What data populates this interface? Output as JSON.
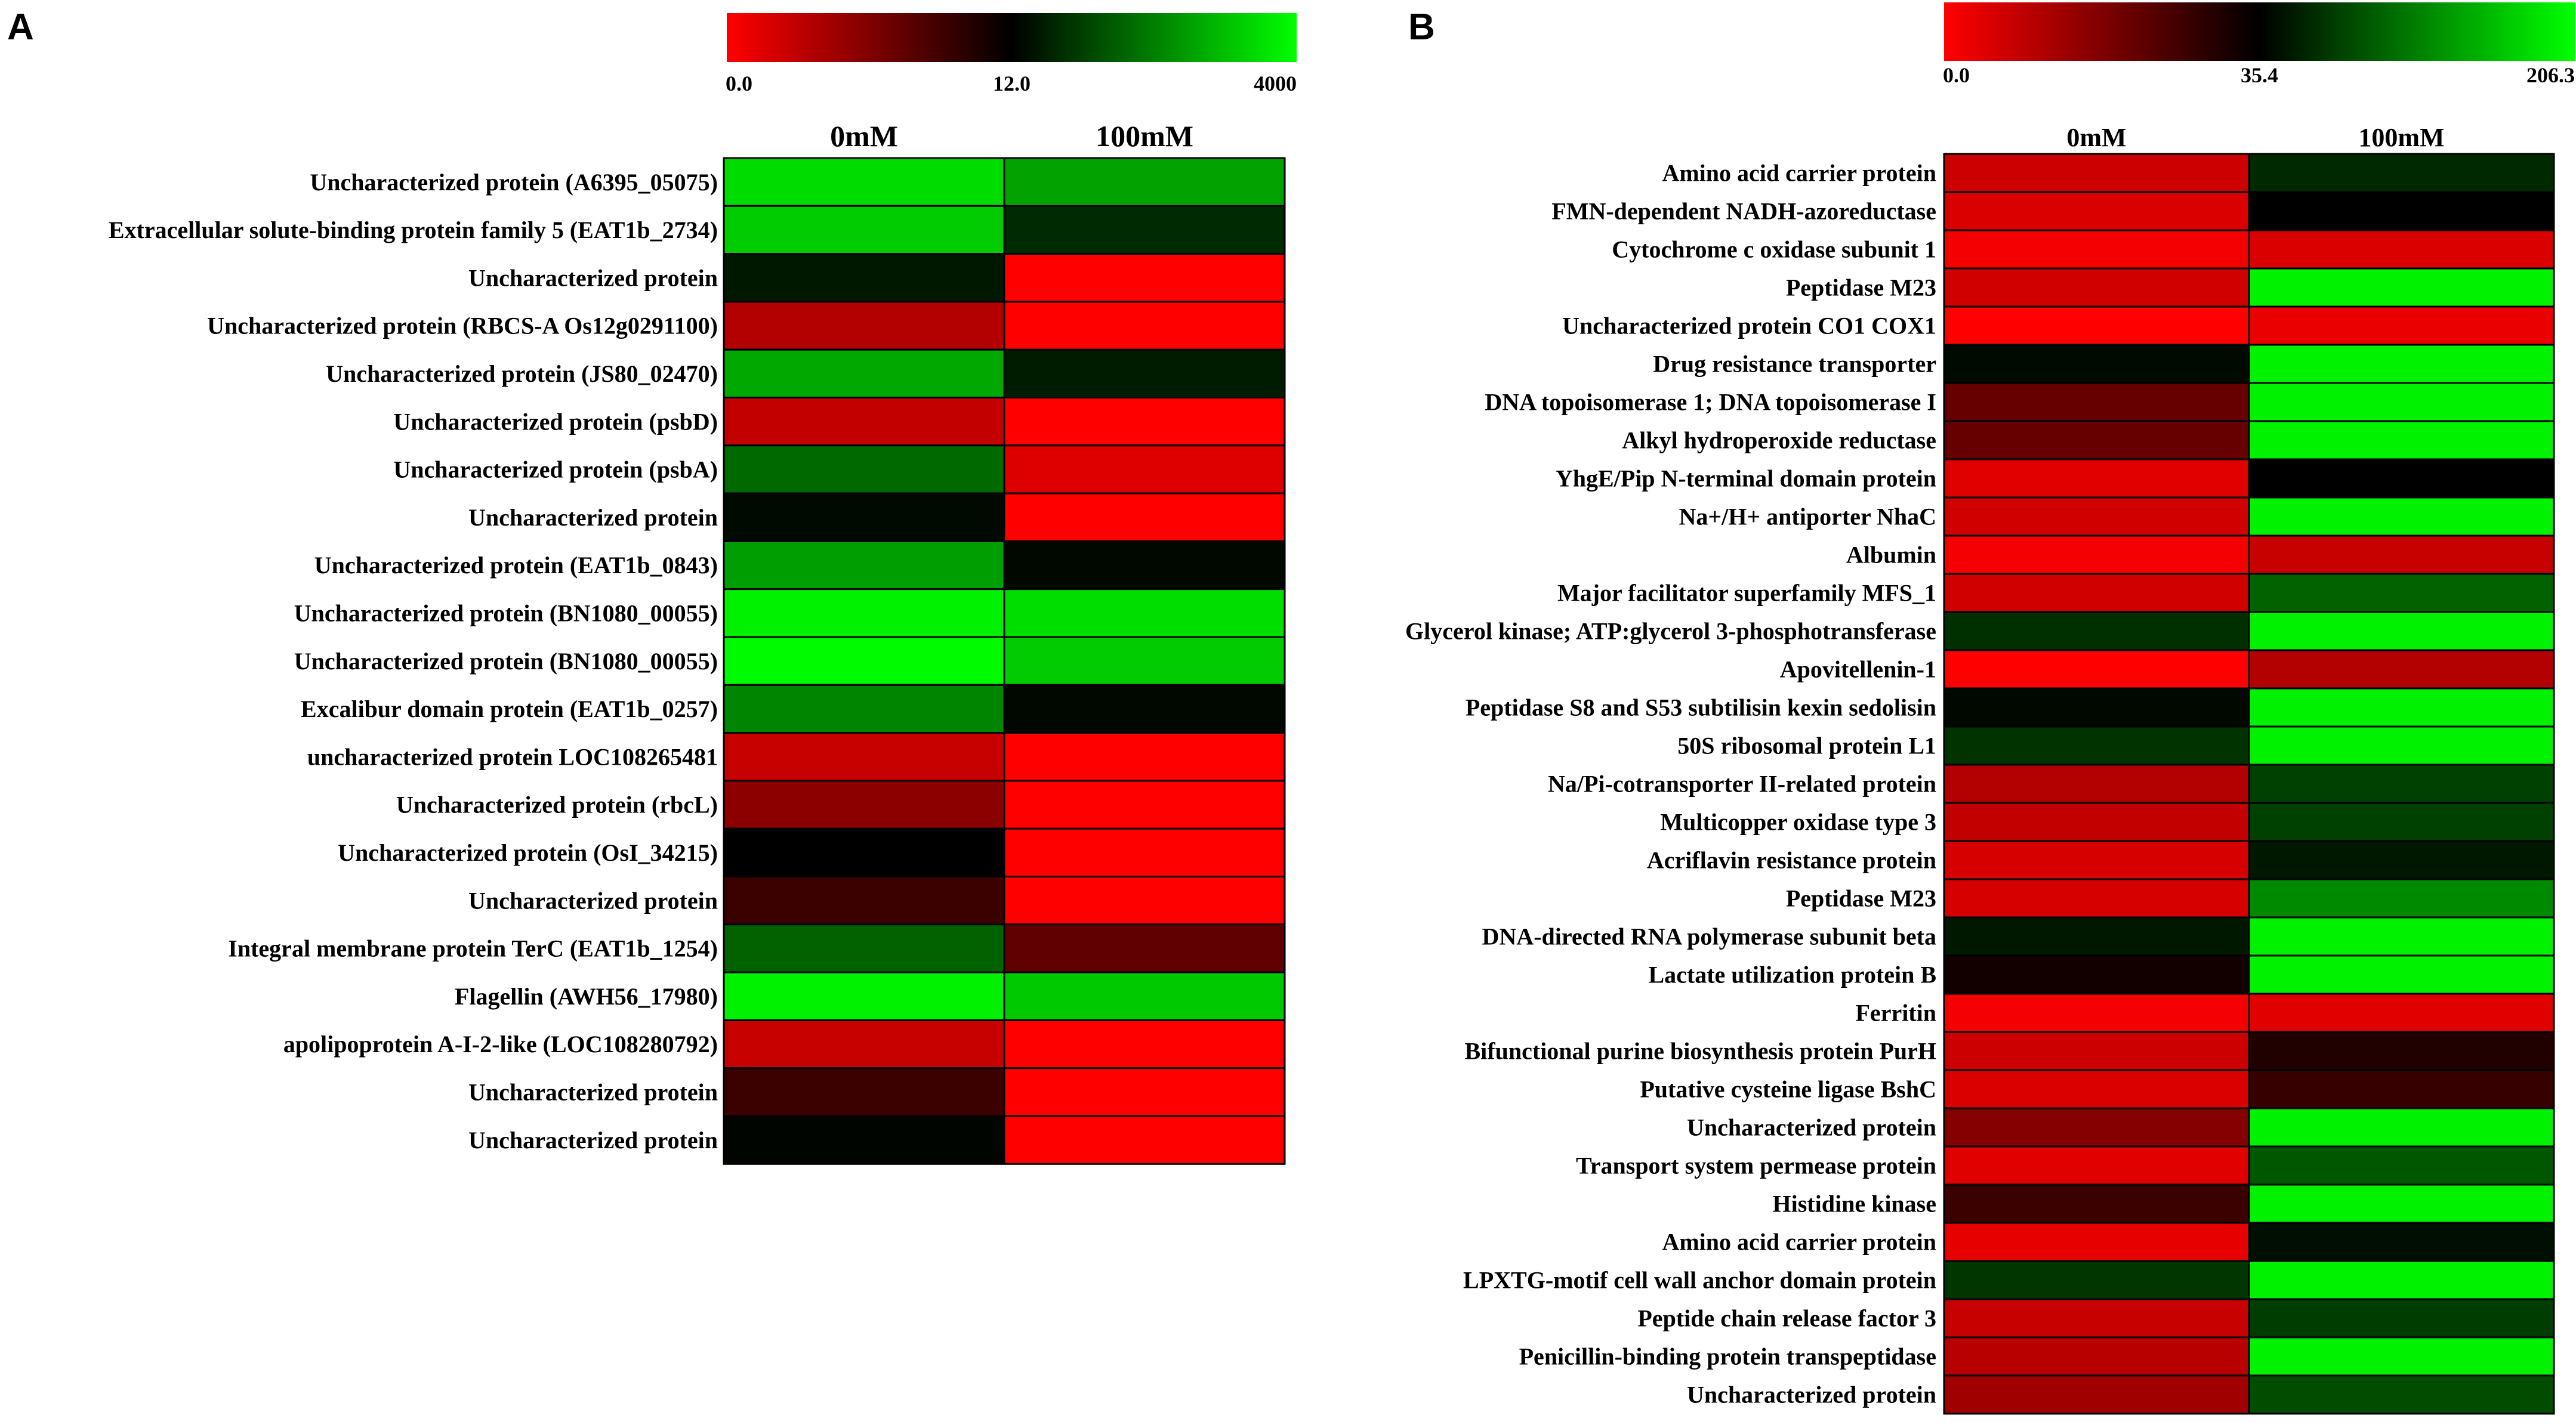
{
  "figure": {
    "panel_a_label": "A",
    "panel_b_label": "B"
  },
  "colors": {
    "low": "#ff0000",
    "mid": "#000000",
    "high": "#00ff00",
    "border": "#000000"
  },
  "chart_data": [
    {
      "type": "heatmap",
      "panel": "A",
      "columns": [
        "0mM",
        "100mM"
      ],
      "colorbar": {
        "tick_labels": [
          "0.0",
          "12.0",
          "4000"
        ],
        "min": 0.0,
        "mid": 12.0,
        "max": 4000
      },
      "rows": [
        {
          "label": "Uncharacterized protein (A6395_05075)",
          "values": [
            0.86,
            0.64
          ]
        },
        {
          "label": "Extracellular solute-binding protein family 5 (EAT1b_2734)",
          "values": [
            0.8,
            0.17
          ]
        },
        {
          "label": "Uncharacterized protein",
          "values": [
            0.09,
            -1.0
          ]
        },
        {
          "label": "Uncharacterized protein (RBCS-A Os12g0291100)",
          "values": [
            -0.7,
            -1.0
          ]
        },
        {
          "label": "Uncharacterized protein (JS80_02470)",
          "values": [
            0.66,
            0.11
          ]
        },
        {
          "label": "Uncharacterized protein (psbD)",
          "values": [
            -0.76,
            -1.0
          ]
        },
        {
          "label": "Uncharacterized protein (psbA)",
          "values": [
            0.41,
            -0.87
          ]
        },
        {
          "label": "Uncharacterized protein",
          "values": [
            0.04,
            -1.0
          ]
        },
        {
          "label": "Uncharacterized protein (EAT1b_0843)",
          "values": [
            0.62,
            0.03
          ]
        },
        {
          "label": "Uncharacterized protein (BN1080_00055)",
          "values": [
            0.95,
            0.87
          ]
        },
        {
          "label": "Uncharacterized protein (BN1080_00055)",
          "values": [
            0.98,
            0.8
          ]
        },
        {
          "label": "Excalibur domain protein (EAT1b_0257)",
          "values": [
            0.52,
            0.03
          ]
        },
        {
          "label": "uncharacterized protein LOC108265481",
          "values": [
            -0.78,
            -1.0
          ]
        },
        {
          "label": "Uncharacterized protein (rbcL)",
          "values": [
            -0.55,
            -1.0
          ]
        },
        {
          "label": "Uncharacterized protein (OsI_34215)",
          "values": [
            0.0,
            -1.0
          ]
        },
        {
          "label": "Uncharacterized protein",
          "values": [
            -0.23,
            -1.0
          ]
        },
        {
          "label": "Integral membrane protein TerC (EAT1b_1254)",
          "values": [
            0.39,
            -0.38
          ]
        },
        {
          "label": "Flagellin (AWH56_17980)",
          "values": [
            0.95,
            0.79
          ]
        },
        {
          "label": "apolipoprotein A-I-2-like  (LOC108280792)",
          "values": [
            -0.78,
            -1.0
          ]
        },
        {
          "label": "Uncharacterized protein",
          "values": [
            -0.23,
            -1.0
          ]
        },
        {
          "label": "Uncharacterized protein",
          "values": [
            0.02,
            -1.0
          ]
        }
      ]
    },
    {
      "type": "heatmap",
      "panel": "B",
      "columns": [
        "0mM",
        "100mM"
      ],
      "colorbar": {
        "tick_labels": [
          "0.0",
          "35.4",
          "206.3"
        ],
        "min": 0.0,
        "mid": 35.4,
        "max": 206.3
      },
      "rows": [
        {
          "label": "Amino acid carrier protein",
          "values": [
            -0.8,
            0.16
          ]
        },
        {
          "label": "FMN-dependent NADH-azoreductase",
          "values": [
            -0.86,
            0.0
          ]
        },
        {
          "label": "Cytochrome c oxidase subunit 1",
          "values": [
            -0.96,
            -0.86
          ]
        },
        {
          "label": "Peptidase M23",
          "values": [
            -0.82,
            0.95
          ]
        },
        {
          "label": "Uncharacterized protein CO1 COX1",
          "values": [
            -1.0,
            -0.92
          ]
        },
        {
          "label": "Drug resistance transporter",
          "values": [
            0.04,
            0.95
          ]
        },
        {
          "label": "DNA topoisomerase 1; DNA topoisomerase I",
          "values": [
            -0.4,
            0.95
          ]
        },
        {
          "label": "Alkyl hydroperoxide reductase",
          "values": [
            -0.4,
            0.95
          ]
        },
        {
          "label": "YhgE/Pip N-terminal domain protein",
          "values": [
            -0.88,
            0.0
          ]
        },
        {
          "label": "Na+/H+ antiporter NhaC",
          "values": [
            -0.82,
            0.95
          ]
        },
        {
          "label": "Albumin",
          "values": [
            -0.96,
            -0.78
          ]
        },
        {
          "label": "Major facilitator superfamily MFS_1",
          "values": [
            -0.82,
            0.39
          ]
        },
        {
          "label": "Glycerol kinase; ATP:glycerol 3-phosphotransferase",
          "values": [
            0.19,
            0.95
          ]
        },
        {
          "label": "Apovitellenin-1",
          "values": [
            -1.0,
            -0.7
          ]
        },
        {
          "label": "Peptidase S8 and S53 subtilisin kexin sedolisin",
          "values": [
            0.03,
            0.95
          ]
        },
        {
          "label": "50S ribosomal protein L1",
          "values": [
            0.2,
            0.95
          ]
        },
        {
          "label": "Na/Pi-cotransporter II-related protein",
          "values": [
            -0.7,
            0.25
          ]
        },
        {
          "label": "Multicopper oxidase type 3",
          "values": [
            -0.76,
            0.25
          ]
        },
        {
          "label": "Acriflavin resistance protein",
          "values": [
            -0.84,
            0.09
          ]
        },
        {
          "label": "Peptidase M23",
          "values": [
            -0.84,
            0.54
          ]
        },
        {
          "label": "DNA-directed RNA polymerase subunit beta",
          "values": [
            0.09,
            0.95
          ]
        },
        {
          "label": "Lactate utilization protein B",
          "values": [
            -0.07,
            0.95
          ]
        },
        {
          "label": "Ferritin",
          "values": [
            -0.96,
            -0.88
          ]
        },
        {
          "label": "Bifunctional purine biosynthesis protein PurH",
          "values": [
            -0.8,
            -0.13
          ]
        },
        {
          "label": "Putative cysteine ligase BshC",
          "values": [
            -0.86,
            -0.21
          ]
        },
        {
          "label": "Uncharacterized protein",
          "values": [
            -0.52,
            0.95
          ]
        },
        {
          "label": "Transport system permease protein",
          "values": [
            -0.88,
            0.34
          ]
        },
        {
          "label": "Histidine kinase",
          "values": [
            -0.23,
            0.95
          ]
        },
        {
          "label": "Amino acid carrier protein",
          "values": [
            -0.9,
            0.06
          ]
        },
        {
          "label": "LPXTG-motif cell wall anchor domain protein",
          "values": [
            0.21,
            0.95
          ]
        },
        {
          "label": "Peptide chain release factor 3",
          "values": [
            -0.78,
            0.24
          ]
        },
        {
          "label": "Penicillin-binding protein transpeptidase",
          "values": [
            -0.72,
            0.95
          ]
        },
        {
          "label": "Uncharacterized protein",
          "values": [
            -0.63,
            0.3
          ]
        }
      ]
    }
  ]
}
